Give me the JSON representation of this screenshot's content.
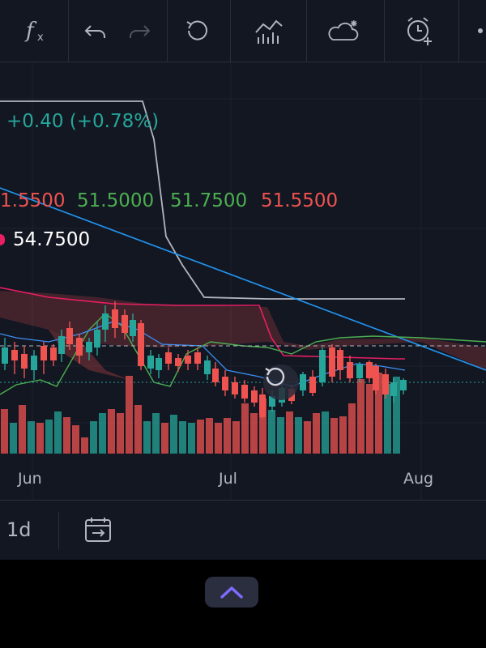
{
  "toolbar": {
    "icons": [
      "indicators-fx-icon",
      "undo-icon",
      "redo-icon",
      "reset-icon",
      "chart-type-icon",
      "weather-icon",
      "alert-clock-icon"
    ]
  },
  "legend": {
    "change": "+0.40 (+0.78%)",
    "ohlc": [
      "1.5500",
      "51.5000",
      "51.7500",
      "51.5500"
    ],
    "indicator_value": "54.7500",
    "colors": {
      "change": "#26a69a",
      "down": "#ef5350",
      "up": "#4caf50",
      "text": "#ffffff",
      "dot": "#e91e63"
    }
  },
  "xaxis": {
    "labels": [
      "Jun",
      "Jul",
      "Aug"
    ]
  },
  "bottom": {
    "interval": "1d"
  },
  "chart_data": {
    "type": "candlestick",
    "candles_up_color": "#26a69a",
    "candles_down_color": "#ef5350",
    "volume_up_color": "#26a69a",
    "volume_down_color": "#ef5350",
    "indicator_lines": [
      {
        "name": "",
        "color": "#b2b5be"
      },
      {
        "name": "",
        "color": "#2196f3"
      },
      {
        "name": "",
        "color": "#e91e63"
      },
      {
        "name": "",
        "color": "#4caf50"
      }
    ],
    "x_labels": [
      "Jun",
      "Jul",
      "Aug"
    ]
  }
}
